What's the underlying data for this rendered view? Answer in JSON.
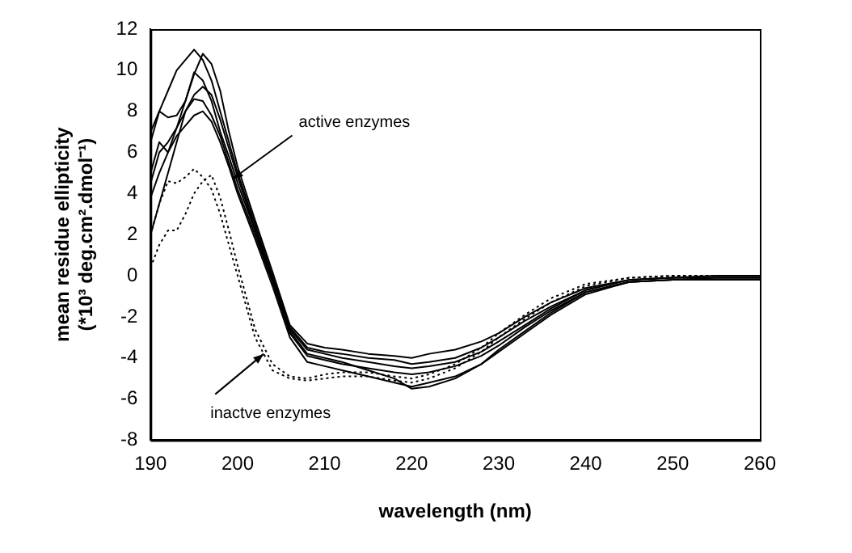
{
  "chart_data": {
    "type": "line",
    "xlabel": "wavelength (nm)",
    "ylabel": "mean residue ellipticity\n(*10³ deg.cm².dmol⁻¹)",
    "x": [
      190,
      191,
      192,
      193,
      194,
      195,
      196,
      197,
      198,
      199,
      200,
      202,
      204,
      206,
      208,
      210,
      212,
      215,
      218,
      220,
      222,
      225,
      228,
      230,
      233,
      236,
      240,
      245,
      250,
      255,
      260
    ],
    "series": [
      {
        "color": "#000000",
        "values": [
          6.5,
          8,
          9,
          10,
          10.5,
          11,
          10.5,
          9.5,
          8,
          6.5,
          5,
          2.5,
          0,
          -2.5,
          -3.5,
          -3.7,
          -3.8,
          -4,
          -4.1,
          -4.3,
          -4.2,
          -4,
          -3.5,
          -3,
          -2.2,
          -1.5,
          -0.7,
          -0.2,
          -0.1,
          -0.1,
          -0.1
        ]
      },
      {
        "color": "#000000",
        "values": [
          7,
          8,
          7.7,
          7.8,
          8.5,
          9.8,
          10.8,
          10.3,
          9,
          7,
          5.3,
          2.7,
          0.2,
          -2.4,
          -3.3,
          -3.5,
          -3.6,
          -3.8,
          -3.9,
          -4,
          -3.8,
          -3.6,
          -3.2,
          -2.8,
          -2,
          -1.3,
          -0.6,
          -0.2,
          -0.1,
          0,
          0
        ]
      },
      {
        "color": "#000000",
        "values": [
          5,
          6.5,
          6,
          7.2,
          8.5,
          9.9,
          9.5,
          8.5,
          7,
          5.8,
          4.5,
          2.2,
          -0.2,
          -2.6,
          -3.6,
          -3.8,
          -4,
          -4.2,
          -4.4,
          -4.5,
          -4.4,
          -4.2,
          -3.7,
          -3.2,
          -2.4,
          -1.6,
          -0.7,
          -0.2,
          -0.1,
          -0.1,
          -0.1
        ]
      },
      {
        "color": "#000000",
        "values": [
          2,
          3.5,
          5,
          6.5,
          8,
          8.6,
          8.5,
          7.8,
          6.8,
          5.5,
          4.2,
          2,
          -0.3,
          -2.8,
          -3.9,
          -4.1,
          -4.3,
          -4.5,
          -4.7,
          -4.8,
          -4.7,
          -4.4,
          -3.9,
          -3.4,
          -2.5,
          -1.7,
          -0.8,
          -0.3,
          -0.2,
          -0.2,
          -0.2
        ]
      },
      {
        "color": "#000000",
        "values": [
          3.8,
          5,
          6,
          6.8,
          7.3,
          7.8,
          8,
          7.5,
          6.5,
          5.3,
          4,
          1.8,
          -0.5,
          -3,
          -4.2,
          -4.4,
          -4.6,
          -4.9,
          -5.2,
          -5.4,
          -5.2,
          -4.9,
          -4.3,
          -3.7,
          -2.8,
          -1.9,
          -0.9,
          -0.3,
          -0.2,
          -0.2,
          -0.2
        ]
      },
      {
        "color": "#000000",
        "values": [
          4.5,
          6,
          6.5,
          7.2,
          8,
          8.8,
          9.2,
          8.8,
          7.6,
          6.2,
          4.8,
          2.3,
          -0.1,
          -2.7,
          -3.8,
          -4,
          -4.2,
          -4.6,
          -5,
          -5.5,
          -5.4,
          -5,
          -4.3,
          -3.6,
          -2.7,
          -1.8,
          -0.8,
          -0.3,
          -0.2,
          -0.1,
          -0.1
        ]
      },
      {
        "color": "#000000",
        "line_style": "dotted",
        "values": [
          2,
          3.5,
          4.6,
          4.5,
          4.8,
          5.2,
          4.8,
          4.2,
          3,
          1.5,
          0,
          -3,
          -4.6,
          -5,
          -5.1,
          -5,
          -4.9,
          -4.9,
          -5.1,
          -5.2,
          -5,
          -4.5,
          -3.7,
          -3,
          -2.1,
          -1.3,
          -0.5,
          -0.1,
          0,
          0,
          0
        ]
      },
      {
        "color": "#000000",
        "line_style": "dotted",
        "values": [
          0.4,
          1.5,
          2.2,
          2.2,
          3,
          4,
          4.6,
          4.9,
          3.8,
          2.2,
          0.5,
          -2.6,
          -4.3,
          -4.9,
          -5,
          -4.8,
          -4.7,
          -4.7,
          -4.9,
          -5,
          -4.8,
          -4.3,
          -3.5,
          -2.8,
          -1.9,
          -1.1,
          -0.4,
          -0.1,
          0,
          0,
          0
        ]
      }
    ],
    "xlim": [
      190,
      260
    ],
    "xticks": [
      190,
      200,
      210,
      220,
      230,
      240,
      250,
      260
    ],
    "ylim": [
      -8,
      12
    ],
    "yticks": [
      -8,
      -6,
      -4,
      -2,
      0,
      2,
      4,
      6,
      8,
      10,
      12
    ],
    "grid": false,
    "legend": false,
    "marker": "none",
    "line_style": "solid",
    "annotations": [
      {
        "text": "active enzymes",
        "x": 199.4,
        "y": 4.7
      },
      {
        "text": "inactve enzymes",
        "x": 203,
        "y": -3.8
      }
    ]
  }
}
